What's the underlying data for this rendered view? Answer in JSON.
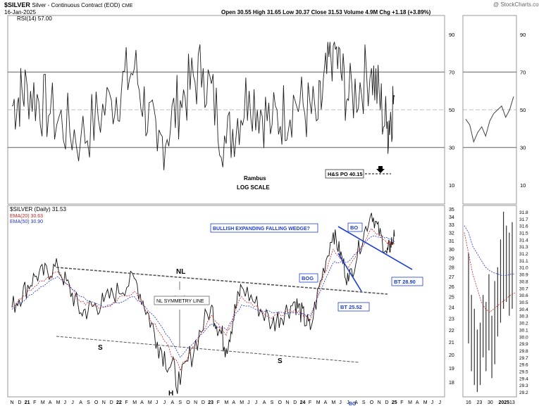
{
  "header": {
    "symbol": "$SILVER",
    "name": "Silver - Continuous Contract (EOD)",
    "exchange": "CME",
    "date": "16-Jan-2025",
    "quote": "Open 30.55  High 31.65  Low 30.37  Close 31.53  Volume 4.9M  Chg +1.18 (+3.89%)",
    "chg_color": "#1a8a1a",
    "logo": "@ StockCharts.com"
  },
  "rsi_panel": {
    "label": "RSI(14) 57.00",
    "levels": [
      90,
      70,
      50,
      30,
      10
    ],
    "overbought": 70,
    "oversold": 30,
    "ylim": [
      0,
      100
    ],
    "annotations": {
      "rambus": "Rambus",
      "log_scale": "LOG SCALE",
      "hs_po": "H&S PO 40.15"
    }
  },
  "price_panel": {
    "label": "$SILVER (Daily) 31.53",
    "ema20_label": "EMA(20) 30.63",
    "ema50_label": "EMA(50) 30.90",
    "ema20_color": "#cc2222",
    "ema50_color": "#2233cc",
    "price_ticks": [
      35,
      34,
      33,
      32,
      31,
      30,
      29,
      28,
      27,
      26,
      25,
      24,
      23,
      22,
      21,
      20,
      19,
      18
    ],
    "ylim": [
      17,
      35.5
    ],
    "scale": "log",
    "annotations": {
      "nl": "NL",
      "nl_symmetry": "NL SYMMETRY LINE",
      "s_left": "S",
      "s_right": "S",
      "head": "H",
      "wedge": "BULLISH EXPANDING FALLING WEDGE?",
      "bo": "BO",
      "bog": "BOG",
      "bt1": "BT 25.52",
      "bt2": "BT 28.90",
      "bo_bottom": "BO"
    }
  },
  "side_panel": {
    "rsi_ticks": [
      90,
      70,
      50,
      30,
      10
    ],
    "price_ticks": [
      31.8,
      31.7,
      31.6,
      31.5,
      31.4,
      31.3,
      31.2,
      31.1,
      31.0,
      30.9,
      30.8,
      30.7,
      30.6,
      30.5,
      30.4,
      30.3,
      30.2,
      30.1,
      30.0,
      29.9,
      29.8,
      29.7,
      29.6,
      29.5,
      29.4,
      29.3,
      29.2
    ],
    "x_labels": [
      "16",
      "23",
      "30",
      "2025",
      "13"
    ]
  },
  "x_axis": {
    "labels": [
      "N",
      "D",
      "21",
      "F",
      "M",
      "A",
      "M",
      "J",
      "J",
      "A",
      "S",
      "O",
      "N",
      "D",
      "22",
      "F",
      "M",
      "A",
      "M",
      "J",
      "J",
      "A",
      "S",
      "O",
      "N",
      "D",
      "23",
      "F",
      "M",
      "A",
      "M",
      "J",
      "J",
      "A",
      "S",
      "O",
      "N",
      "D",
      "24",
      "F",
      "M",
      "A",
      "M",
      "J",
      "J",
      "A",
      "S",
      "O",
      "N",
      "D",
      "25",
      "F",
      "M",
      "A",
      "M",
      "J",
      "J"
    ]
  },
  "chart_data": [
    {
      "type": "line",
      "title": "RSI(14) 57.00",
      "x": [
        "2020-11",
        "2021-01",
        "2021-04",
        "2021-08",
        "2021-12",
        "2022-03",
        "2022-06",
        "2022-09",
        "2022-12",
        "2023-03",
        "2023-06",
        "2023-09",
        "2023-12",
        "2024-03",
        "2024-05",
        "2024-07",
        "2024-10",
        "2024-12",
        "2025-01"
      ],
      "series": [
        {
          "name": "RSI(14)",
          "values": [
            52,
            62,
            48,
            35,
            55,
            72,
            28,
            55,
            72,
            32,
            60,
            42,
            55,
            45,
            84,
            55,
            72,
            40,
            57
          ]
        }
      ],
      "ylim": [
        0,
        100
      ],
      "grid": true
    },
    {
      "type": "line",
      "title": "$SILVER (Daily) 31.53",
      "x": [
        "2020-11",
        "2021-02",
        "2021-05",
        "2021-08",
        "2021-11",
        "2022-03",
        "2022-06",
        "2022-09",
        "2023-01",
        "2023-03",
        "2023-05",
        "2023-09",
        "2023-12",
        "2024-02",
        "2024-05",
        "2024-07",
        "2024-10",
        "2024-12",
        "2025-01"
      ],
      "series": [
        {
          "name": "$SILVER (Daily) 31.53",
          "values": [
            24.0,
            27.0,
            28.0,
            23.5,
            24.5,
            26.8,
            21.0,
            17.8,
            24.0,
            20.5,
            26.0,
            22.5,
            24.5,
            22.0,
            32.0,
            26.5,
            34.5,
            29.5,
            31.53
          ]
        },
        {
          "name": "EMA(20) 30.63",
          "values": [
            24.0,
            26.0,
            27.5,
            24.5,
            24.0,
            25.5,
            22.0,
            18.8,
            23.2,
            21.5,
            25.0,
            23.0,
            23.8,
            22.8,
            30.0,
            28.0,
            32.5,
            30.8,
            30.63
          ]
        },
        {
          "name": "EMA(50) 30.90",
          "values": [
            23.8,
            25.5,
            27.0,
            25.0,
            24.0,
            25.0,
            22.8,
            19.8,
            22.5,
            22.0,
            24.2,
            23.5,
            23.5,
            23.2,
            28.5,
            28.6,
            31.5,
            31.4,
            30.9
          ]
        }
      ],
      "ylim": [
        17,
        35.5
      ],
      "scale": "log",
      "grid": false
    }
  ]
}
